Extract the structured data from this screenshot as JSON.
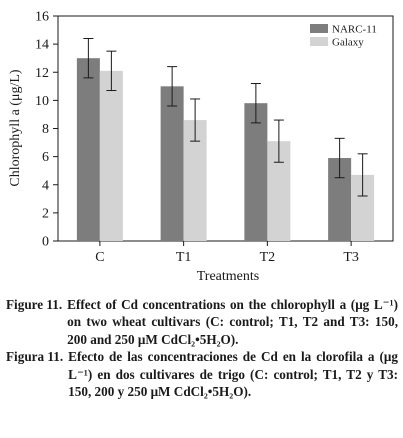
{
  "chart_data": {
    "type": "bar",
    "ylabel": "Chlorophyll a (μg/L)",
    "xlabel": "Treatments",
    "categories": [
      "C",
      "T1",
      "T2",
      "T3"
    ],
    "ylim": [
      0,
      16
    ],
    "yticks": [
      "0",
      "2",
      "4",
      "6",
      "8",
      "10",
      "12",
      "14",
      "16"
    ],
    "series": [
      {
        "name": "NARC-11",
        "color": "#7d7d7d",
        "values": [
          13.0,
          11.0,
          9.8,
          5.9
        ],
        "errors": [
          1.4,
          1.4,
          1.4,
          1.4
        ]
      },
      {
        "name": "Galaxy",
        "color": "#d3d3d3",
        "values": [
          12.1,
          8.6,
          7.1,
          4.7
        ],
        "errors": [
          1.4,
          1.5,
          1.5,
          1.5
        ]
      }
    ],
    "legend_position": "top-right",
    "grid": false
  },
  "captions": [
    {
      "label": "Figure 11.",
      "text": "Effect of Cd concentrations on the chlorophyll a (μg L⁻¹) on two wheat cultivars (C: control; T1, T2 and T3: 150, 200 and 250 μM CdCl₂•5H₂O)."
    },
    {
      "label": "Figura 11.",
      "text": "Efecto de las concentraciones de Cd en la clorofila a (μg L⁻¹) en dos cultivares de trigo (C: control; T1, T2 y T3: 150, 200 y 250 μM CdCl₂•5H₂O)."
    }
  ]
}
